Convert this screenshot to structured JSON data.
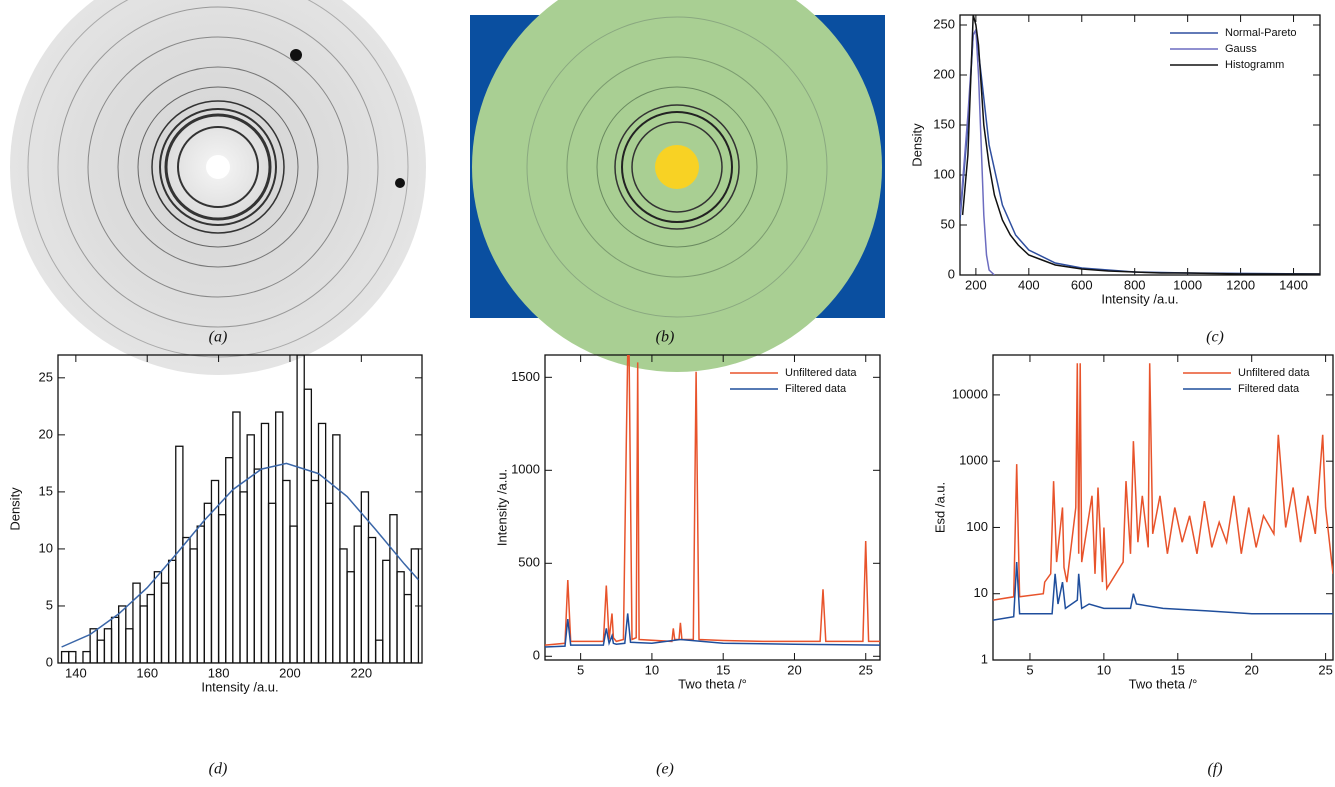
{
  "panels": [
    {
      "label": "(a)"
    },
    {
      "label": "(b)"
    }
  ],
  "chart_data": [
    {
      "type": "line",
      "panel_label": "(c)",
      "x_label": "Intensity /a.u.",
      "y_label": "Density",
      "xlim": [
        140,
        1500
      ],
      "ylim": [
        0,
        260
      ],
      "xticks": [
        200,
        400,
        600,
        800,
        1000,
        1200,
        1400
      ],
      "yticks": [
        0,
        50,
        100,
        150,
        200,
        250
      ],
      "legend": "upper right",
      "series": [
        {
          "name": "Normal-Pareto",
          "color": "#2f4f9f",
          "x": [
            140,
            170,
            190,
            200,
            220,
            250,
            300,
            350,
            400,
            500,
            600,
            800,
            1000,
            1500
          ],
          "values": [
            55,
            150,
            240,
            245,
            200,
            130,
            70,
            40,
            25,
            12,
            7,
            3,
            2,
            1
          ]
        },
        {
          "name": "Gauss",
          "color": "#6c6cc0",
          "x": [
            140,
            170,
            190,
            200,
            210,
            220,
            230,
            240,
            250,
            270
          ],
          "values": [
            60,
            160,
            240,
            245,
            200,
            130,
            60,
            20,
            5,
            0
          ]
        },
        {
          "name": "Histogramm",
          "color": "#111111",
          "x": [
            150,
            170,
            190,
            200,
            210,
            230,
            250,
            270,
            300,
            330,
            360,
            400,
            450,
            500,
            550,
            600,
            700,
            800,
            900,
            1000,
            1200,
            1400,
            1500
          ],
          "values": [
            60,
            120,
            260,
            250,
            230,
            150,
            110,
            80,
            55,
            40,
            30,
            20,
            15,
            10,
            8,
            6,
            4,
            3,
            2,
            2,
            1,
            1,
            1
          ]
        }
      ]
    },
    {
      "type": "histogram",
      "panel_label": "(d)",
      "x_label": "Intensity /a.u.",
      "y_label": "Density",
      "xlim": [
        135,
        237
      ],
      "ylim": [
        0,
        27
      ],
      "xticks": [
        140,
        160,
        180,
        200,
        220
      ],
      "yticks": [
        0,
        5,
        10,
        15,
        20,
        25
      ],
      "color": "#111111",
      "bins": [
        136,
        138,
        140,
        142,
        144,
        146,
        148,
        150,
        152,
        154,
        156,
        158,
        160,
        162,
        164,
        166,
        168,
        170,
        172,
        174,
        176,
        178,
        180,
        182,
        184,
        186,
        188,
        190,
        192,
        194,
        196,
        198,
        200,
        202,
        204,
        206,
        208,
        210,
        212,
        214,
        216,
        218,
        220,
        222,
        224,
        226,
        228,
        230,
        232,
        234,
        236
      ],
      "values": [
        1,
        1,
        0,
        1,
        3,
        2,
        3,
        4,
        5,
        3,
        7,
        5,
        6,
        8,
        7,
        9,
        19,
        11,
        10,
        12,
        14,
        16,
        13,
        18,
        22,
        15,
        20,
        17,
        21,
        14,
        22,
        16,
        12,
        27,
        24,
        16,
        21,
        14,
        20,
        10,
        8,
        12,
        15,
        11,
        2,
        9,
        13,
        8,
        6,
        10
      ],
      "fit": {
        "color": "#3a66a8",
        "x": [
          136,
          144,
          152,
          160,
          168,
          176,
          184,
          192,
          199,
          208,
          216,
          224,
          232,
          236
        ],
        "values": [
          1.4,
          2.5,
          4.3,
          6.6,
          9.5,
          12.5,
          15.2,
          17,
          17.5,
          16.6,
          14.6,
          11.7,
          8.7,
          7.3
        ]
      }
    },
    {
      "type": "line",
      "panel_label": "(e)",
      "x_label": "Two theta /°",
      "y_label": "Intensity /a.u.",
      "xlim": [
        2.5,
        26
      ],
      "ylim": [
        -20,
        1620
      ],
      "xticks": [
        5,
        10,
        15,
        20,
        25
      ],
      "yticks": [
        0,
        500,
        1000,
        1500
      ],
      "legend": "upper right",
      "series": [
        {
          "name": "Unfiltered data",
          "color": "#e8532b",
          "x": [
            2.5,
            3.9,
            4.1,
            4.3,
            6.6,
            6.8,
            7.0,
            7.2,
            7.3,
            7.5,
            8.0,
            8.2,
            8.3,
            8.4,
            8.6,
            8.9,
            9.0,
            9.1,
            11.4,
            11.5,
            11.6,
            11.9,
            12.0,
            12.1,
            12.9,
            13.1,
            13.3,
            15,
            18,
            21.8,
            22.0,
            22.2,
            24.8,
            25.0,
            25.2,
            26
          ],
          "values": [
            60,
            70,
            410,
            80,
            80,
            380,
            90,
            230,
            100,
            80,
            90,
            1150,
            1620,
            1620,
            90,
            100,
            1580,
            90,
            80,
            150,
            90,
            90,
            180,
            90,
            90,
            1530,
            90,
            85,
            80,
            80,
            360,
            80,
            80,
            620,
            80,
            80
          ]
        },
        {
          "name": "Filtered data",
          "color": "#1f4e9c",
          "x": [
            2.5,
            3.9,
            4.1,
            4.3,
            6.6,
            6.8,
            7.0,
            7.2,
            7.3,
            7.5,
            8.1,
            8.3,
            8.5,
            10,
            12,
            15,
            20,
            26
          ],
          "values": [
            50,
            55,
            200,
            60,
            60,
            150,
            70,
            110,
            70,
            65,
            70,
            230,
            75,
            70,
            90,
            70,
            65,
            60
          ]
        }
      ]
    },
    {
      "type": "line",
      "panel_label": "(f)",
      "x_label": "Two theta /°",
      "y_label": "Esd /a.u.",
      "log_y": true,
      "xlim": [
        2.5,
        25.5
      ],
      "ylim": [
        1,
        40000
      ],
      "xticks": [
        5,
        10,
        15,
        20,
        25
      ],
      "yticks": [
        1,
        10,
        100,
        1000,
        10000
      ],
      "legend": "upper right",
      "series": [
        {
          "name": "Unfiltered data",
          "color": "#e8532b",
          "x": [
            2.5,
            3.9,
            4.1,
            4.3,
            5.9,
            6.0,
            6.4,
            6.6,
            6.8,
            7.2,
            7.3,
            7.5,
            8.1,
            8.2,
            8.3,
            8.4,
            8.5,
            9.2,
            9.4,
            9.6,
            9.9,
            10.0,
            10.2,
            11.3,
            11.5,
            11.8,
            12.0,
            12.3,
            12.6,
            13.0,
            13.1,
            13.3,
            13.8,
            14.3,
            14.8,
            15.3,
            15.8,
            16.3,
            16.8,
            17.3,
            17.8,
            18.3,
            18.8,
            19.3,
            19.8,
            20.3,
            20.8,
            21.5,
            21.8,
            22.3,
            22.8,
            23.3,
            23.8,
            24.3,
            24.8,
            25.0,
            25.5
          ],
          "values": [
            8,
            9,
            900,
            9,
            10,
            15,
            20,
            500,
            30,
            200,
            25,
            15,
            200,
            30000,
            40,
            30000,
            30,
            300,
            20,
            400,
            15,
            100,
            12,
            30,
            500,
            40,
            2000,
            60,
            300,
            50,
            30000,
            80,
            300,
            40,
            200,
            60,
            150,
            40,
            250,
            50,
            120,
            60,
            300,
            40,
            200,
            50,
            150,
            80,
            2500,
            100,
            400,
            60,
            300,
            80,
            2500,
            200,
            20
          ]
        },
        {
          "name": "Filtered data",
          "color": "#1f4e9c",
          "x": [
            2.5,
            3.9,
            4.1,
            4.3,
            6.5,
            6.7,
            6.9,
            7.2,
            7.4,
            8.2,
            8.3,
            8.5,
            9,
            10,
            11.8,
            12,
            12.2,
            14,
            17,
            20,
            25.5
          ],
          "values": [
            4,
            4.5,
            30,
            5,
            5,
            20,
            7,
            15,
            6,
            8,
            20,
            6,
            7,
            6,
            6,
            10,
            7,
            6,
            5.5,
            5,
            5
          ]
        }
      ]
    }
  ]
}
